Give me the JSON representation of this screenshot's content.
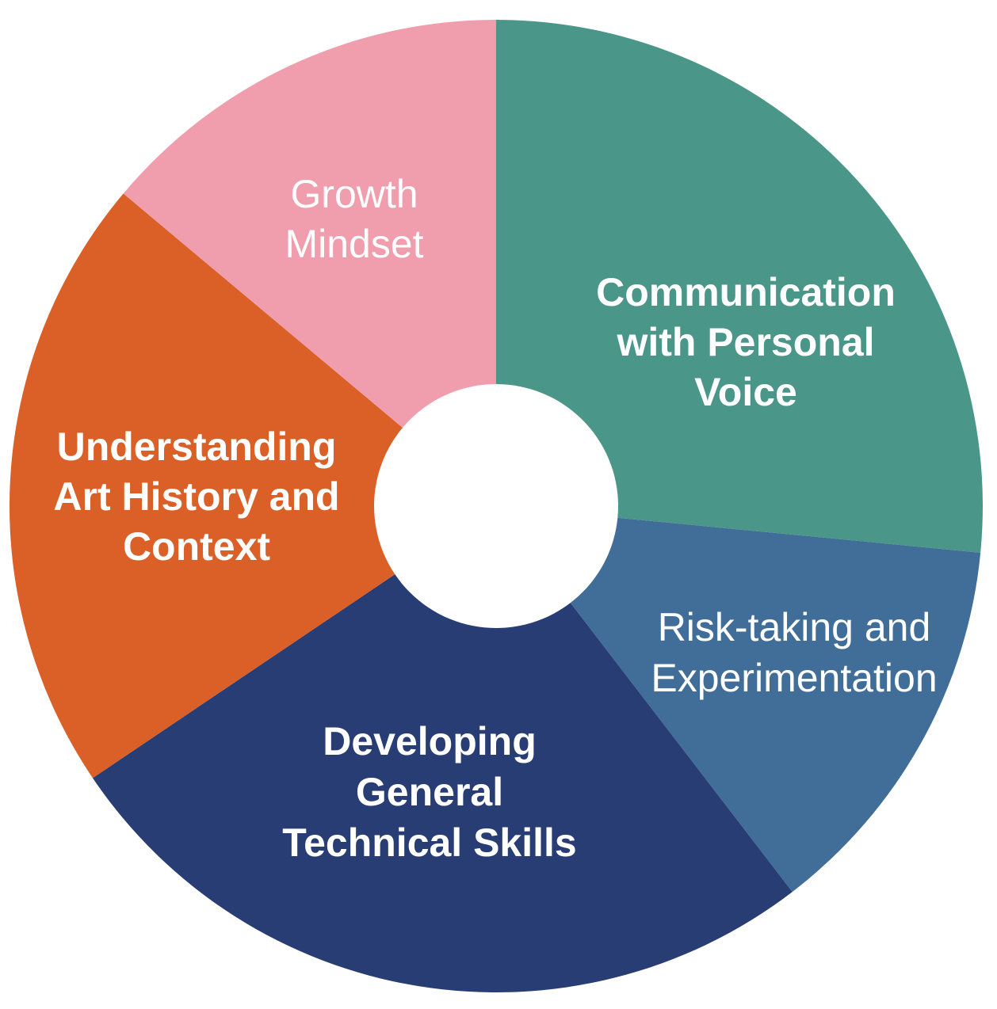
{
  "diagram": {
    "type": "wheel",
    "segments": [
      {
        "id": "communication",
        "lines": [
          "Communication",
          "with Personal",
          "Voice"
        ],
        "color": "#4A9688",
        "weight": "bold"
      },
      {
        "id": "risk",
        "lines": [
          "Risk-taking and",
          "Experimentation"
        ],
        "color": "#416E99",
        "weight": "normal"
      },
      {
        "id": "developing",
        "lines": [
          "Developing",
          "General",
          "Technical Skills"
        ],
        "color": "#293D75",
        "weight": "bold"
      },
      {
        "id": "understanding",
        "lines": [
          "Understanding",
          "Art History and",
          "Context"
        ],
        "color": "#DA6027",
        "weight": "bold"
      },
      {
        "id": "growth",
        "lines": [
          "Growth",
          "Mindset"
        ],
        "color": "#F09EAE",
        "weight": "normal"
      }
    ],
    "center_color": "#ffffff"
  }
}
